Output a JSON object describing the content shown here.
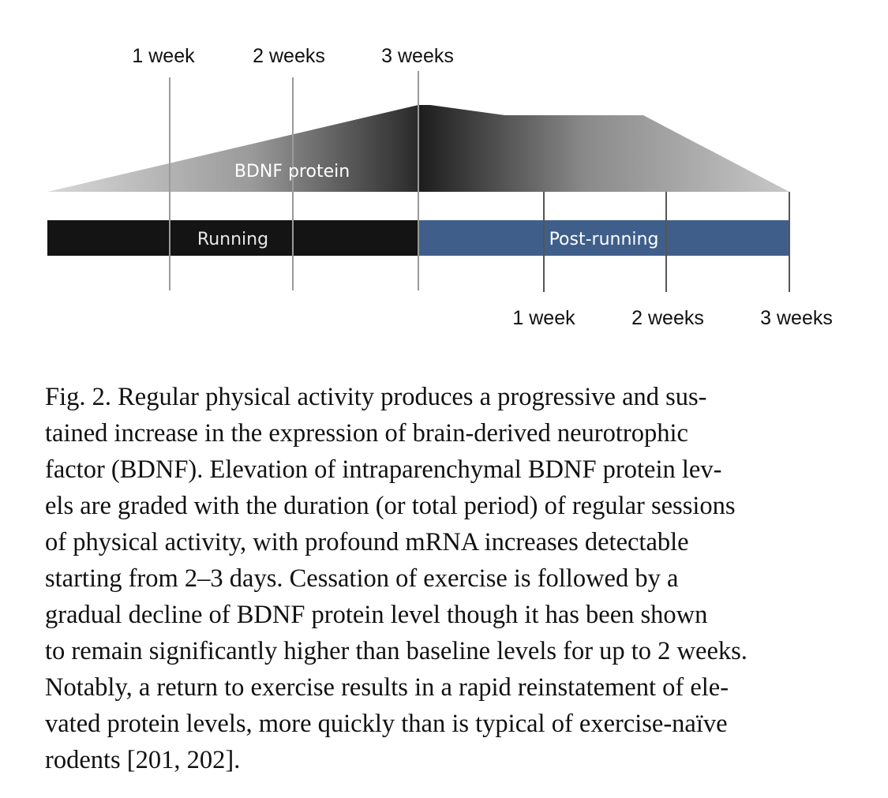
{
  "diagram": {
    "top_ticks": [
      "1 week",
      "2 weeks",
      "3 weeks"
    ],
    "bottom_ticks": [
      "1 week",
      "2 weeks",
      "3 weeks"
    ],
    "bdnf_label": "BDNF protein",
    "running_label": "Running",
    "post_running_label": "Post-running",
    "colors": {
      "running_bar": "#141414",
      "post_running_bar": "#3f5f8a",
      "bar_text_running": "#e8e8e8",
      "bar_text_post": "#ffffff",
      "guide_lines": "#9a9a9a",
      "bdnf_label": "#ffffff"
    }
  },
  "caption": {
    "lines": [
      "Fig. 2. Regular physical activity produces a progressive and sus-",
      "tained increase in the expression of brain-derived neurotrophic",
      "factor (BDNF). Elevation of intraparenchymal BDNF protein lev-",
      "els are graded with the duration (or total period) of regular sessions",
      "of physical activity, with profound mRNA increases detectable",
      "starting from 2–3 days. Cessation of exercise is followed by a",
      "gradual decline of BDNF protein level though it has been shown",
      "to remain significantly higher than baseline levels for up to 2 weeks.",
      "Notably, a return to exercise results in a rapid reinstatement of ele-",
      "vated protein levels, more quickly than is typical of exercise-naïve",
      "rodents [201, 202]."
    ]
  }
}
